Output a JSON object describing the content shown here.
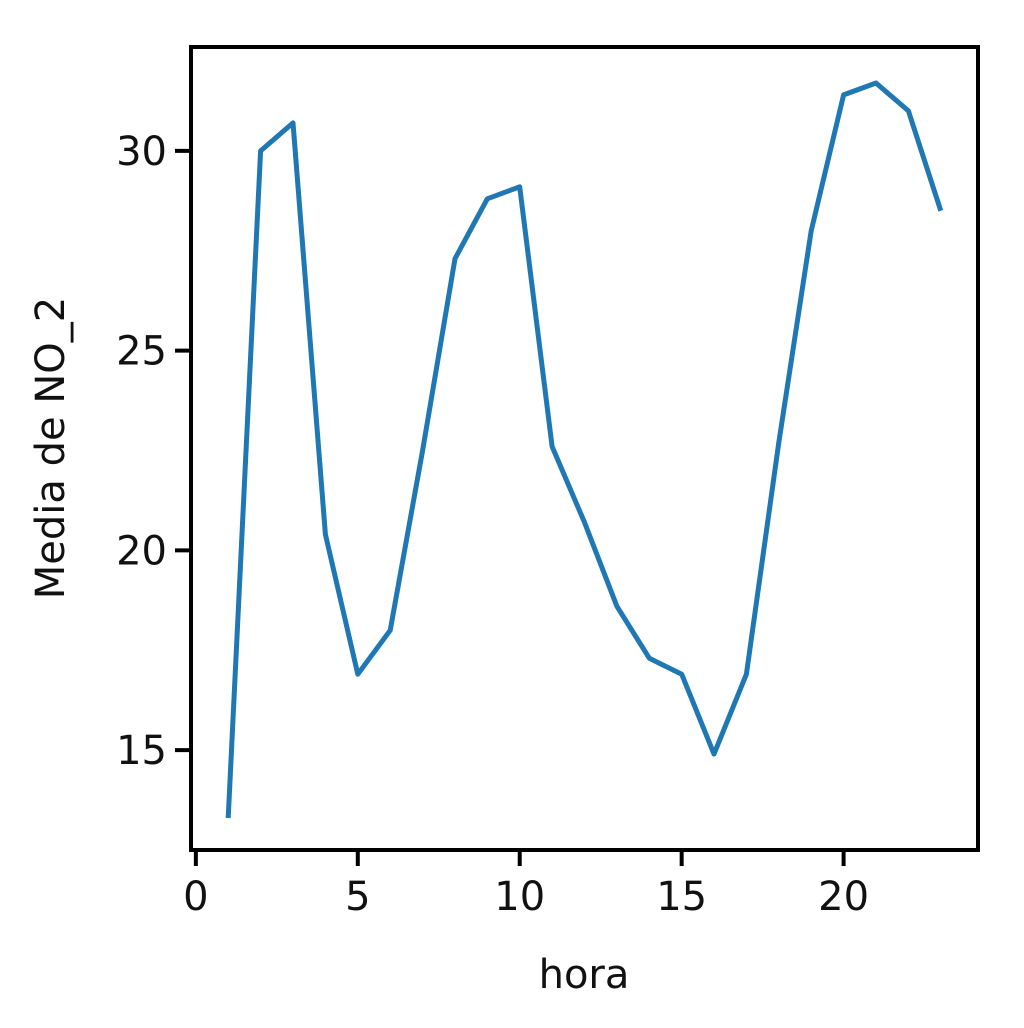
{
  "chart_data": {
    "type": "line",
    "title": "",
    "xlabel": "hora",
    "ylabel": "Media de NO_2",
    "xlim": [
      -0.15,
      24.15
    ],
    "ylim": [
      12.5,
      32.6
    ],
    "xticks": [
      0,
      5,
      10,
      15,
      20
    ],
    "xtick_labels": [
      "0",
      "5",
      "10",
      "15",
      "20"
    ],
    "yticks": [
      15,
      20,
      25,
      30
    ],
    "ytick_labels": [
      "15",
      "20",
      "25",
      "30"
    ],
    "grid": false,
    "legend": "none",
    "series": [
      {
        "color": "#1f77b4",
        "x": [
          1,
          2,
          3,
          4,
          5,
          6,
          7,
          8,
          9,
          10,
          11,
          12,
          13,
          14,
          15,
          16,
          17,
          18,
          19,
          20,
          21,
          22,
          23
        ],
        "y": [
          13.3,
          30.0,
          30.7,
          20.4,
          16.9,
          18.0,
          22.5,
          27.3,
          28.8,
          29.1,
          22.6,
          20.7,
          18.6,
          17.3,
          16.9,
          14.9,
          16.9,
          22.7,
          28.0,
          31.4,
          31.7,
          31.0,
          28.5
        ]
      }
    ]
  }
}
